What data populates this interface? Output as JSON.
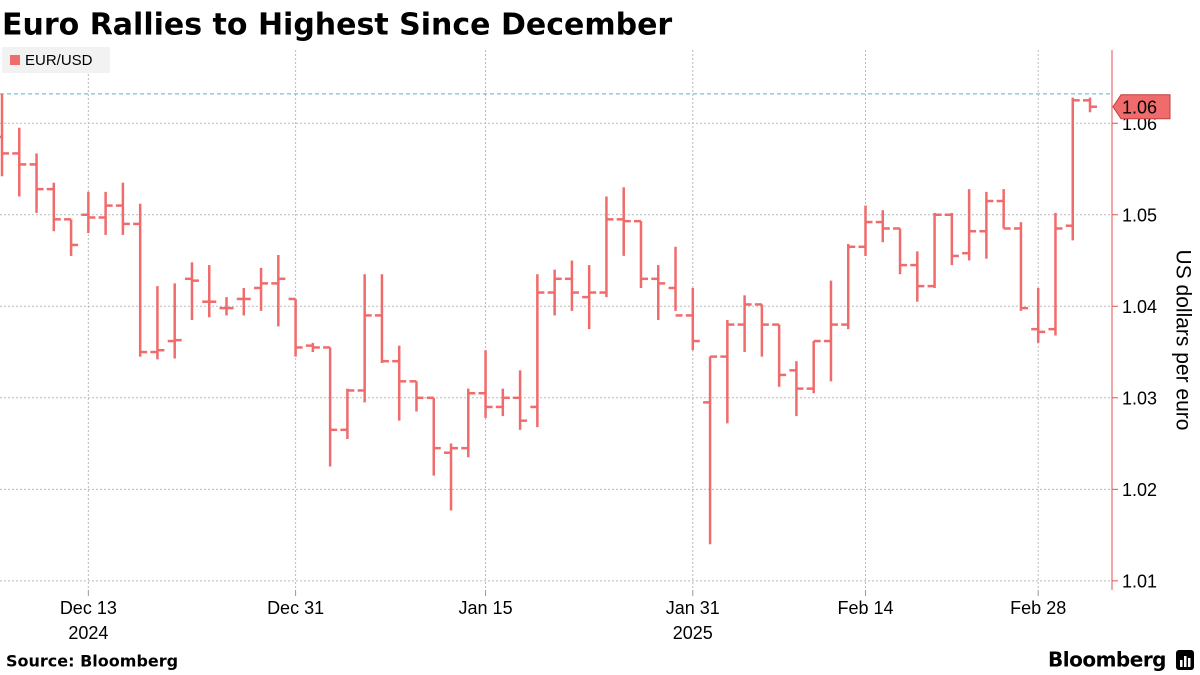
{
  "chart_data": {
    "type": "ohlc",
    "title": "Euro Rallies to Highest Since December",
    "ylabel": "US dollars per euro",
    "source": "Source: Bloomberg",
    "brand": "Bloomberg",
    "categories": [
      null,
      null,
      null,
      null,
      null,
      "Dec 13",
      null,
      null,
      null,
      null,
      null,
      null,
      null,
      null,
      null,
      null,
      null,
      "Dec 31",
      null,
      null,
      null,
      null,
      null,
      null,
      null,
      null,
      null,
      null,
      "Jan 15",
      null,
      null,
      null,
      null,
      null,
      null,
      null,
      null,
      null,
      null,
      null,
      "Jan 31",
      null,
      null,
      null,
      null,
      null,
      null,
      null,
      null,
      null,
      "Feb 14",
      null,
      null,
      null,
      null,
      null,
      null,
      null,
      null,
      null,
      "Feb 28",
      null,
      null,
      null
    ],
    "category_sublabels": [
      null,
      null,
      null,
      null,
      null,
      "2024",
      null,
      null,
      null,
      null,
      null,
      null,
      null,
      null,
      null,
      null,
      null,
      null,
      null,
      null,
      null,
      null,
      null,
      null,
      null,
      null,
      null,
      null,
      null,
      null,
      null,
      null,
      null,
      null,
      null,
      null,
      null,
      null,
      null,
      null,
      "2025",
      null,
      null,
      null,
      null,
      null,
      null,
      null,
      null,
      null,
      null,
      null,
      null,
      null,
      null,
      null,
      null,
      null,
      null,
      null,
      null,
      null,
      null,
      null
    ],
    "series": [
      {
        "name": "EUR/USD",
        "color": "#f06b6b",
        "open": [
          1.0585,
          1.0567,
          1.0555,
          1.0528,
          1.0495,
          1.05,
          1.0497,
          1.051,
          1.049,
          1.035,
          1.0362,
          1.043,
          1.0405,
          1.0398,
          1.0408,
          1.042,
          1.0425,
          1.0408,
          1.0357,
          1.0355,
          1.0265,
          1.0308,
          1.039,
          1.034,
          1.0318,
          1.03,
          1.024,
          1.0245,
          1.0305,
          1.029,
          1.03,
          1.029,
          1.0415,
          1.043,
          1.041,
          1.0415,
          1.0495,
          1.0493,
          1.043,
          1.042,
          1.039,
          1.0295,
          1.0345,
          1.038,
          1.0402,
          1.038,
          1.033,
          1.031,
          1.0362,
          1.038,
          1.0465,
          1.0492,
          1.0485,
          1.0445,
          1.0422,
          1.05,
          1.0458,
          1.0482,
          1.0515,
          1.0485,
          1.0375,
          1.0375,
          1.0488,
          1.0625
        ],
        "high": [
          1.0632,
          1.0595,
          1.0567,
          1.0535,
          1.0495,
          1.0525,
          1.0525,
          1.0535,
          1.0512,
          1.0422,
          1.0425,
          1.0448,
          1.0445,
          1.041,
          1.042,
          1.0442,
          1.0456,
          1.0408,
          1.036,
          1.0355,
          1.031,
          1.0435,
          1.0435,
          1.0357,
          1.0318,
          1.03,
          1.025,
          1.031,
          1.0352,
          1.031,
          1.033,
          1.0435,
          1.044,
          1.045,
          1.0445,
          1.052,
          1.053,
          1.0493,
          1.0445,
          1.0465,
          1.042,
          1.0345,
          1.0385,
          1.0412,
          1.0402,
          1.038,
          1.034,
          1.0362,
          1.0428,
          1.0468,
          1.051,
          1.0505,
          1.0485,
          1.046,
          1.0502,
          1.0502,
          1.0528,
          1.0525,
          1.0528,
          1.0492,
          1.042,
          1.0502,
          1.0628,
          1.0628
        ],
        "low": [
          1.0542,
          1.052,
          1.0502,
          1.0482,
          1.0455,
          1.048,
          1.0478,
          1.0478,
          1.0345,
          1.0342,
          1.0343,
          1.0385,
          1.0388,
          1.039,
          1.039,
          1.0395,
          1.0378,
          1.0345,
          1.035,
          1.0225,
          1.0255,
          1.0295,
          1.0338,
          1.0275,
          1.0285,
          1.0215,
          1.0177,
          1.0235,
          1.0278,
          1.028,
          1.0265,
          1.0268,
          1.039,
          1.0395,
          1.0375,
          1.041,
          1.0455,
          1.042,
          1.0385,
          1.0395,
          1.0352,
          1.014,
          1.0272,
          1.035,
          1.0345,
          1.0312,
          1.028,
          1.0305,
          1.0318,
          1.0375,
          1.0455,
          1.047,
          1.0435,
          1.0405,
          1.042,
          1.0445,
          1.045,
          1.0452,
          1.0485,
          1.0395,
          1.036,
          1.0368,
          1.0472,
          1.0612
        ],
        "close": [
          1.0567,
          1.0555,
          1.0528,
          1.0495,
          1.0467,
          1.0497,
          1.051,
          1.049,
          1.035,
          1.0352,
          1.0363,
          1.0428,
          1.0405,
          1.0398,
          1.0408,
          1.0425,
          1.043,
          1.0355,
          1.0355,
          1.0265,
          1.0308,
          1.039,
          1.034,
          1.0318,
          1.03,
          1.0245,
          1.0245,
          1.0305,
          1.029,
          1.03,
          1.0275,
          1.0415,
          1.043,
          1.0415,
          1.0415,
          1.0495,
          1.0493,
          1.043,
          1.0425,
          1.039,
          1.0362,
          1.0345,
          1.038,
          1.0402,
          1.038,
          1.0325,
          1.031,
          1.0362,
          1.038,
          1.0465,
          1.0492,
          1.0485,
          1.0445,
          1.0422,
          1.05,
          1.0455,
          1.0482,
          1.0515,
          1.0485,
          1.0398,
          1.0372,
          1.0485,
          1.0625,
          1.0618
        ],
        "last_label": "1.06"
      }
    ],
    "reference_line": 1.0632,
    "reference_color": "#5ab4c4",
    "ylim": [
      1.009,
      1.068
    ],
    "yticks": [
      1.01,
      1.02,
      1.03,
      1.04,
      1.05,
      1.06
    ],
    "yaxis_side": "right",
    "grid": true,
    "legend": "top-left"
  }
}
